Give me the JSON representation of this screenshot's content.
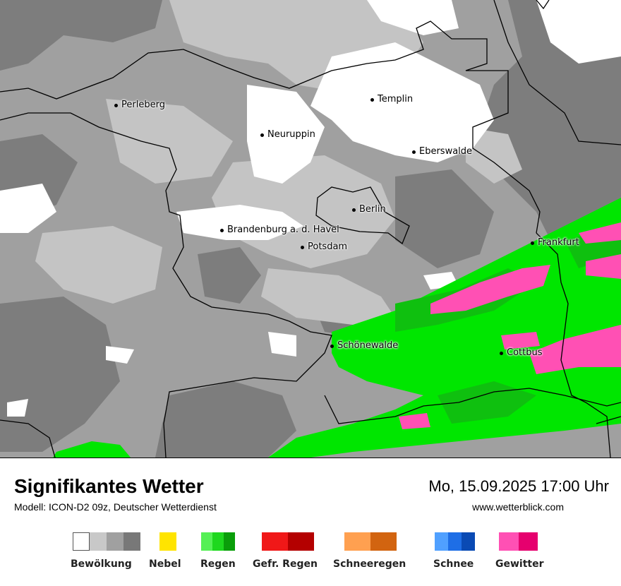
{
  "map": {
    "cities": [
      {
        "name": "Perleberg"
      },
      {
        "name": "Templin"
      },
      {
        "name": "Neuruppin"
      },
      {
        "name": "Eberswalde"
      },
      {
        "name": "Berlin"
      },
      {
        "name": "Brandenburg a. d. Havel"
      },
      {
        "name": "Potsdam"
      },
      {
        "name": "Frankfurt"
      },
      {
        "name": "Schönewalde"
      },
      {
        "name": "Cottbus"
      }
    ]
  },
  "header": {
    "title": "Signifikantes Wetter",
    "model": "Modell: ICON-D2 09z, Deutscher Wetterdienst",
    "datetime": "Mo, 15.09.2025 17:00 Uhr",
    "website": "www.wetterblick.com"
  },
  "legend": [
    {
      "label": "Bewölkung",
      "colors": [
        "#ffffff",
        "#c8c8c8",
        "#a0a0a0",
        "#787878"
      ]
    },
    {
      "label": "Nebel",
      "colors": [
        "#ffe400"
      ]
    },
    {
      "label": "Regen",
      "colors": [
        "#55f055",
        "#1ed81e",
        "#0a9e0a"
      ]
    },
    {
      "label": "Gefr. Regen",
      "colors": [
        "#f01818",
        "#b40000"
      ]
    },
    {
      "label": "Schneeregen",
      "colors": [
        "#ffa050",
        "#d26410"
      ]
    },
    {
      "label": "Schnee",
      "colors": [
        "#50a0ff",
        "#1e6ee6",
        "#0a4ab4"
      ]
    },
    {
      "label": "Gewitter",
      "colors": [
        "#ff50b4",
        "#e6006e"
      ]
    }
  ]
}
